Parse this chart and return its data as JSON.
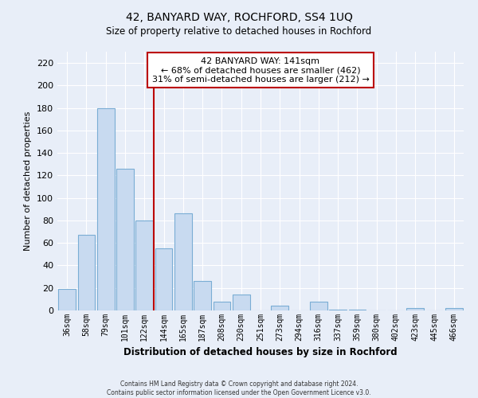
{
  "title": "42, BANYARD WAY, ROCHFORD, SS4 1UQ",
  "subtitle": "Size of property relative to detached houses in Rochford",
  "xlabel": "Distribution of detached houses by size in Rochford",
  "ylabel": "Number of detached properties",
  "bar_labels": [
    "36sqm",
    "58sqm",
    "79sqm",
    "101sqm",
    "122sqm",
    "144sqm",
    "165sqm",
    "187sqm",
    "208sqm",
    "230sqm",
    "251sqm",
    "273sqm",
    "294sqm",
    "316sqm",
    "337sqm",
    "359sqm",
    "380sqm",
    "402sqm",
    "423sqm",
    "445sqm",
    "466sqm"
  ],
  "bar_values": [
    19,
    67,
    180,
    126,
    80,
    55,
    86,
    26,
    8,
    14,
    0,
    4,
    0,
    8,
    1,
    1,
    0,
    0,
    2,
    0,
    2
  ],
  "bar_color": "#c8daf0",
  "bar_edge_color": "#7aadd4",
  "ylim": [
    0,
    230
  ],
  "yticks": [
    0,
    20,
    40,
    60,
    80,
    100,
    120,
    140,
    160,
    180,
    200,
    220
  ],
  "vline_x": 4.5,
  "vline_color": "#bb0000",
  "annotation_title": "42 BANYARD WAY: 141sqm",
  "annotation_line1": "← 68% of detached houses are smaller (462)",
  "annotation_line2": "31% of semi-detached houses are larger (212) →",
  "annotation_box_color": "#ffffff",
  "annotation_box_edge_color": "#bb0000",
  "footer_line1": "Contains HM Land Registry data © Crown copyright and database right 2024.",
  "footer_line2": "Contains public sector information licensed under the Open Government Licence v3.0.",
  "background_color": "#e8eef8",
  "plot_background_color": "#e8eef8",
  "grid_color": "#ffffff"
}
